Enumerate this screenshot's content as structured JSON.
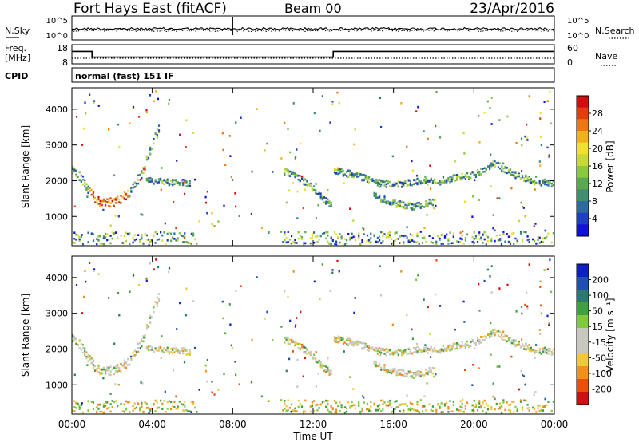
{
  "header": {
    "station": "Fort Hays East (fitACF)",
    "beam": "Beam 00",
    "date": "23/Apr/2016"
  },
  "side_labels": {
    "nsky": "N.Sky",
    "nsearch": "N.Search",
    "freq": "Freq.",
    "freq_unit": "[MHz]",
    "nave": "Nave",
    "cpid": "CPID",
    "cpid_value": "normal (fast) 151 IF"
  },
  "noise_axis": {
    "top": "10^5",
    "bottom": "10^0"
  },
  "freq_axis": {
    "top": "18",
    "bottom": "8"
  },
  "nave_axis": {
    "top": "60",
    "bottom": "0"
  },
  "range_axis": {
    "label": "Slant Range [km]",
    "ticks": [
      "1000",
      "2000",
      "3000",
      "4000"
    ],
    "min": 180,
    "max": 4600
  },
  "time_axis": {
    "label": "Time UT",
    "ticks": [
      "00:00",
      "04:00",
      "08:00",
      "12:00",
      "16:00",
      "20:00",
      "00:00"
    ],
    "min_h": 0,
    "max_h": 24
  },
  "power_scale": {
    "label": "Power [dB]",
    "ticks": [
      "4",
      "8",
      "12",
      "16",
      "20",
      "24",
      "28"
    ],
    "colors": [
      "#1010e0",
      "#2040c0",
      "#2d6aa0",
      "#3f8f70",
      "#5aa850",
      "#8ac840",
      "#c8d83a",
      "#f0e030",
      "#f0b020",
      "#e87818",
      "#e04010",
      "#d01010"
    ]
  },
  "velocity_scale": {
    "label": "Velocity [m s⁻¹]",
    "ticks": [
      "200",
      "100",
      "50",
      "15",
      "-15",
      "-50",
      "-100",
      "-200"
    ],
    "colors": [
      "#1020c0",
      "#2050b0",
      "#2a7a70",
      "#40a040",
      "#80c840",
      "#c8c8c0",
      "#c8c8c0",
      "#f0c840",
      "#f09020",
      "#e85010",
      "#d01010"
    ]
  },
  "chart_data": {
    "type": "heatmap",
    "title": "Fort Hays East (fitACF) Beam 00 23/Apr/2016",
    "xlabel": "Time UT",
    "ylabel": "Slant Range [km]",
    "xlim": [
      0,
      24
    ],
    "ylim": [
      180,
      4600
    ],
    "frequency_mhz": [
      {
        "from_h": 0,
        "to_h": 1.0,
        "value": 14.5
      },
      {
        "from_h": 1.0,
        "to_h": 13.0,
        "value": 11.5
      },
      {
        "from_h": 13.0,
        "to_h": 24,
        "value": 14.5
      }
    ],
    "scatter_bands": [
      {
        "name": "morning arc",
        "points": [
          [
            0.0,
            2300
          ],
          [
            0.4,
            2150
          ],
          [
            0.9,
            1700
          ],
          [
            1.2,
            1450
          ],
          [
            1.8,
            1400
          ],
          [
            2.4,
            1500
          ],
          [
            3.0,
            1800
          ],
          [
            3.5,
            2300
          ],
          [
            3.9,
            2900
          ],
          [
            4.3,
            3500
          ]
        ]
      },
      {
        "name": "mid arc",
        "points": [
          [
            3.6,
            2050
          ],
          [
            4.5,
            2000
          ],
          [
            5.2,
            1980
          ],
          [
            5.9,
            1950
          ]
        ]
      },
      {
        "name": "evening descent",
        "points": [
          [
            10.5,
            2300
          ],
          [
            11.3,
            2100
          ],
          [
            12.0,
            1800
          ],
          [
            12.5,
            1500
          ],
          [
            12.9,
            1350
          ]
        ]
      },
      {
        "name": "afternoon band",
        "points": [
          [
            13.0,
            2300
          ],
          [
            14.0,
            2200
          ],
          [
            15.0,
            2000
          ],
          [
            16.0,
            1900
          ],
          [
            17.0,
            2000
          ],
          [
            18.0,
            2000
          ],
          [
            19.0,
            2100
          ],
          [
            20.0,
            2200
          ],
          [
            21.0,
            2500
          ],
          [
            22.0,
            2200
          ],
          [
            23.0,
            2000
          ],
          [
            24.0,
            1950
          ]
        ]
      },
      {
        "name": "lower band",
        "points": [
          [
            15.0,
            1600
          ],
          [
            16.0,
            1400
          ],
          [
            17.0,
            1300
          ],
          [
            18.0,
            1450
          ]
        ]
      }
    ]
  }
}
